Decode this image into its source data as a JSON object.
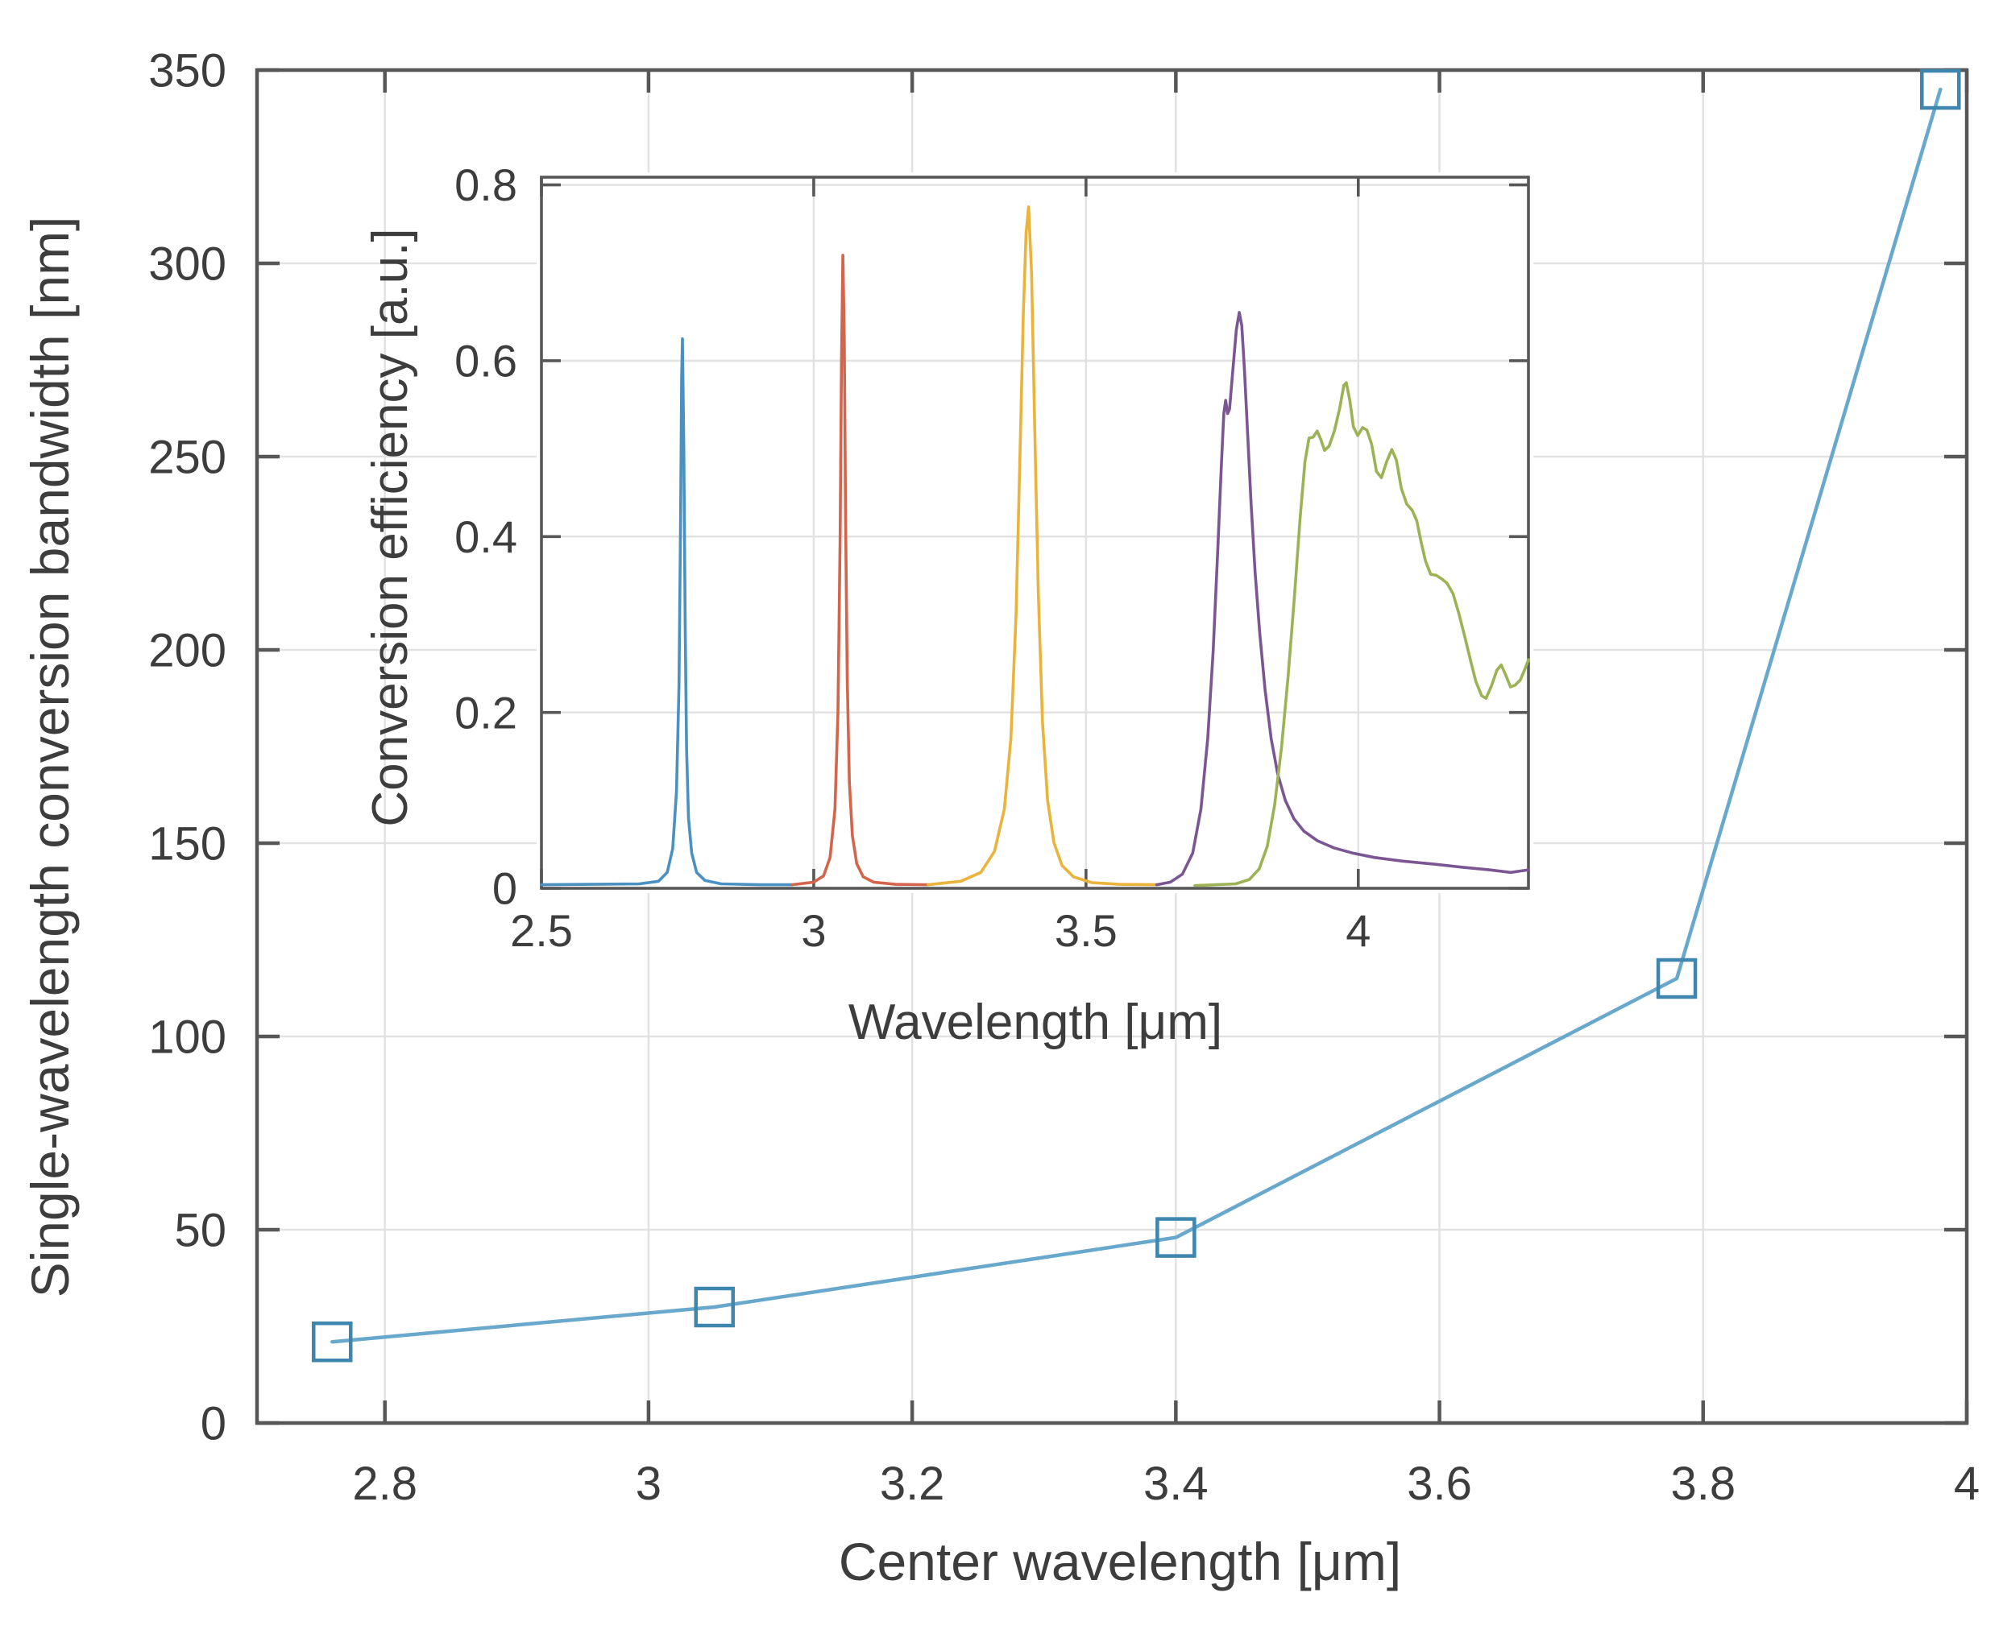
{
  "figure": {
    "background": "#ffffff",
    "frame_color": "#575757",
    "grid_color": "#e2e2e2",
    "text_color": "#3d3d3d"
  },
  "chart_data": [
    {
      "id": "main",
      "type": "line",
      "title": "",
      "xlabel": "Center wavelength [μm]",
      "ylabel": "Single-wavelength conversion bandwidth [nm]",
      "xlim": [
        2.703,
        4.0
      ],
      "ylim": [
        0,
        350
      ],
      "grid": true,
      "legend": "none",
      "xticks": {
        "values": [
          2.8,
          3.0,
          3.2,
          3.4,
          3.6,
          3.8,
          4.0
        ],
        "labels": [
          "2.8",
          "3",
          "3.2",
          "3.4",
          "3.6",
          "3.8",
          "4"
        ]
      },
      "yticks": {
        "values": [
          0,
          50,
          100,
          150,
          200,
          250,
          300,
          350
        ],
        "labels": [
          "0",
          "50",
          "100",
          "150",
          "200",
          "250",
          "300",
          "350"
        ]
      },
      "series": [
        {
          "name": "single-wavelength conversion bandwidth",
          "color": "#68a8cc",
          "marker": "square",
          "marker_color": "#3e86ad",
          "points": [
            [
              2.76,
              21
            ],
            [
              3.05,
              30
            ],
            [
              3.4,
              48
            ],
            [
              3.78,
              115
            ],
            [
              3.98,
              345
            ]
          ]
        }
      ]
    },
    {
      "id": "inset",
      "type": "line",
      "title": "",
      "xlabel": "Wavelength [μm]",
      "ylabel": "Conversion efficiency [a.u.]",
      "xlim": [
        2.5,
        4.3125
      ],
      "ylim": [
        0,
        0.8088
      ],
      "grid": true,
      "legend": "none",
      "xticks": {
        "values": [
          2.5,
          3.0,
          3.5,
          4.0
        ],
        "labels": [
          "2.5",
          "3",
          "3.5",
          "4"
        ]
      },
      "yticks": {
        "values": [
          0,
          0.2,
          0.4,
          0.6,
          0.8
        ],
        "labels": [
          "0",
          "0.2",
          "0.4",
          "0.6",
          "0.8"
        ]
      },
      "series": [
        {
          "name": "conversion spectrum 2.76 um",
          "color": "#4a90c0",
          "marker": "none",
          "points": [
            [
              2.5,
              0.004
            ],
            [
              2.68,
              0.005
            ],
            [
              2.715,
              0.008
            ],
            [
              2.731,
              0.018
            ],
            [
              2.741,
              0.045
            ],
            [
              2.748,
              0.11
            ],
            [
              2.7525,
              0.23
            ],
            [
              2.7555,
              0.42
            ],
            [
              2.7575,
              0.58
            ],
            [
              2.759,
              0.625
            ],
            [
              2.7615,
              0.5
            ],
            [
              2.764,
              0.3
            ],
            [
              2.7665,
              0.16
            ],
            [
              2.77,
              0.08
            ],
            [
              2.776,
              0.04
            ],
            [
              2.785,
              0.018
            ],
            [
              2.8,
              0.009
            ],
            [
              2.83,
              0.005
            ],
            [
              2.9,
              0.004
            ],
            [
              2.96,
              0.004
            ]
          ]
        },
        {
          "name": "conversion spectrum 3.05 um",
          "color": "#d2654b",
          "marker": "none",
          "points": [
            [
              2.96,
              0.004
            ],
            [
              3.0,
              0.007
            ],
            [
              3.018,
              0.014
            ],
            [
              3.03,
              0.035
            ],
            [
              3.039,
              0.09
            ],
            [
              3.0445,
              0.2
            ],
            [
              3.0485,
              0.4
            ],
            [
              3.051,
              0.6
            ],
            [
              3.0535,
              0.72
            ],
            [
              3.056,
              0.63
            ],
            [
              3.0585,
              0.42
            ],
            [
              3.0615,
              0.24
            ],
            [
              3.0655,
              0.12
            ],
            [
              3.071,
              0.06
            ],
            [
              3.079,
              0.028
            ],
            [
              3.091,
              0.013
            ],
            [
              3.11,
              0.007
            ],
            [
              3.15,
              0.0045
            ],
            [
              3.21,
              0.004
            ]
          ]
        },
        {
          "name": "conversion spectrum 3.40 um",
          "color": "#e9b33c",
          "marker": "none",
          "points": [
            [
              3.21,
              0.004
            ],
            [
              3.27,
              0.008
            ],
            [
              3.307,
              0.018
            ],
            [
              3.332,
              0.042
            ],
            [
              3.35,
              0.09
            ],
            [
              3.362,
              0.17
            ],
            [
              3.3715,
              0.31
            ],
            [
              3.379,
              0.5
            ],
            [
              3.385,
              0.655
            ],
            [
              3.39,
              0.745
            ],
            [
              3.3945,
              0.775
            ],
            [
              3.4,
              0.7
            ],
            [
              3.406,
              0.52
            ],
            [
              3.4125,
              0.335
            ],
            [
              3.42,
              0.19
            ],
            [
              3.4295,
              0.1
            ],
            [
              3.441,
              0.052
            ],
            [
              3.456,
              0.026
            ],
            [
              3.477,
              0.013
            ],
            [
              3.51,
              0.0065
            ],
            [
              3.56,
              0.0045
            ],
            [
              3.63,
              0.004
            ]
          ]
        },
        {
          "name": "conversion spectrum 3.78 um",
          "color": "#7a5693",
          "marker": "none",
          "points": [
            [
              3.63,
              0.004
            ],
            [
              3.655,
              0.007
            ],
            [
              3.677,
              0.016
            ],
            [
              3.696,
              0.04
            ],
            [
              3.711,
              0.09
            ],
            [
              3.7235,
              0.17
            ],
            [
              3.7335,
              0.27
            ],
            [
              3.742,
              0.385
            ],
            [
              3.7485,
              0.48
            ],
            [
              3.753,
              0.54
            ],
            [
              3.7565,
              0.555
            ],
            [
              3.76,
              0.54
            ],
            [
              3.7635,
              0.545
            ],
            [
              3.769,
              0.585
            ],
            [
              3.776,
              0.635
            ],
            [
              3.7815,
              0.655
            ],
            [
              3.786,
              0.64
            ],
            [
              3.791,
              0.59
            ],
            [
              3.7965,
              0.52
            ],
            [
              3.803,
              0.44
            ],
            [
              3.8105,
              0.36
            ],
            [
              3.819,
              0.29
            ],
            [
              3.829,
              0.225
            ],
            [
              3.84,
              0.17
            ],
            [
              3.852,
              0.13
            ],
            [
              3.866,
              0.1
            ],
            [
              3.882,
              0.079
            ],
            [
              3.9,
              0.065
            ],
            [
              3.925,
              0.054
            ],
            [
              3.955,
              0.046
            ],
            [
              3.99,
              0.04
            ],
            [
              4.03,
              0.035
            ],
            [
              4.08,
              0.031
            ],
            [
              4.13,
              0.028
            ],
            [
              4.19,
              0.024
            ],
            [
              4.24,
              0.021
            ],
            [
              4.28,
              0.018
            ],
            [
              4.3125,
              0.021
            ]
          ]
        },
        {
          "name": "conversion spectrum 3.99 um",
          "color": "#9cb254",
          "marker": "none",
          "points": [
            [
              3.7,
              0.003
            ],
            [
              3.775,
              0.005
            ],
            [
              3.8,
              0.01
            ],
            [
              3.818,
              0.022
            ],
            [
              3.833,
              0.048
            ],
            [
              3.8465,
              0.095
            ],
            [
              3.859,
              0.16
            ],
            [
              3.871,
              0.24
            ],
            [
              3.8825,
              0.33
            ],
            [
              3.893,
              0.42
            ],
            [
              3.902,
              0.485
            ],
            [
              3.9095,
              0.512
            ],
            [
              3.917,
              0.513
            ],
            [
              3.9245,
              0.52
            ],
            [
              3.9315,
              0.51
            ],
            [
              3.938,
              0.498
            ],
            [
              3.9465,
              0.503
            ],
            [
              3.956,
              0.52
            ],
            [
              3.9655,
              0.545
            ],
            [
              3.9735,
              0.572
            ],
            [
              3.978,
              0.575
            ],
            [
              3.9845,
              0.555
            ],
            [
              3.991,
              0.525
            ],
            [
              3.999,
              0.515
            ],
            [
              4.008,
              0.524
            ],
            [
              4.016,
              0.521
            ],
            [
              4.0245,
              0.505
            ],
            [
              4.0335,
              0.474
            ],
            [
              4.0425,
              0.467
            ],
            [
              4.0525,
              0.486
            ],
            [
              4.0615,
              0.499
            ],
            [
              4.07,
              0.487
            ],
            [
              4.079,
              0.455
            ],
            [
              4.089,
              0.437
            ],
            [
              4.099,
              0.43
            ],
            [
              4.1075,
              0.418
            ],
            [
              4.115,
              0.395
            ],
            [
              4.1235,
              0.372
            ],
            [
              4.133,
              0.357
            ],
            [
              4.143,
              0.356
            ],
            [
              4.153,
              0.352
            ],
            [
              4.163,
              0.347
            ],
            [
              4.174,
              0.335
            ],
            [
              4.185,
              0.312
            ],
            [
              4.196,
              0.285
            ],
            [
              4.2065,
              0.258
            ],
            [
              4.216,
              0.235
            ],
            [
              4.2265,
              0.219
            ],
            [
              4.2345,
              0.216
            ],
            [
              4.2445,
              0.23
            ],
            [
              4.2545,
              0.248
            ],
            [
              4.2625,
              0.254
            ],
            [
              4.271,
              0.242
            ],
            [
              4.2795,
              0.229
            ],
            [
              4.288,
              0.231
            ],
            [
              4.2975,
              0.237
            ],
            [
              4.3065,
              0.25
            ],
            [
              4.3125,
              0.26
            ]
          ]
        }
      ]
    }
  ]
}
